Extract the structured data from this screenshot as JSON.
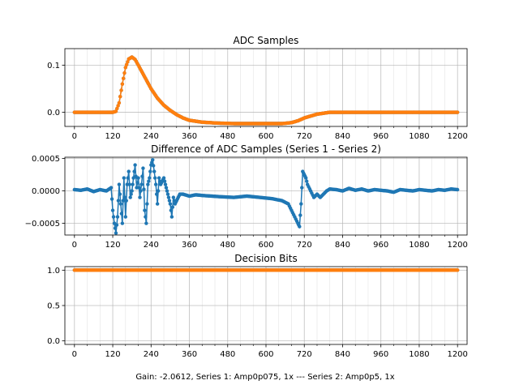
{
  "figure": {
    "caption": "Gain: -2.0612, Series 1: Amp0p075, 1x --- Series 2: Amp0p5, 1x"
  },
  "colors": {
    "series1": "#1f77b4",
    "series2": "#ff7f0e",
    "grid": "#b0b0b0",
    "axes": "#000000"
  },
  "chart_data": [
    {
      "type": "line",
      "title": "ADC Samples",
      "xlim": [
        -30,
        1230
      ],
      "ylim": [
        -0.03,
        0.135
      ],
      "grid": true,
      "xticks": [
        0,
        120,
        240,
        360,
        480,
        600,
        720,
        840,
        960,
        1080,
        1200
      ],
      "xtick_labels": [
        "0",
        "120",
        "240",
        "360",
        "480",
        "600",
        "720",
        "840",
        "960",
        "1080",
        "1200"
      ],
      "yticks": [
        0.0,
        0.1
      ],
      "ytick_labels": [
        "0.0",
        "0.1"
      ],
      "series": [
        {
          "color": "#1f77b4",
          "x": [
            0,
            100,
            120,
            130,
            140,
            150,
            160,
            170,
            180,
            190,
            200,
            220,
            240,
            260,
            280,
            300,
            320,
            340,
            360,
            400,
            450,
            500,
            550,
            600,
            650,
            680,
            700,
            720,
            740,
            760,
            780,
            800,
            850,
            900,
            1000,
            1100,
            1200
          ],
          "y": [
            0.0,
            0.0,
            0.0,
            0.002,
            0.02,
            0.06,
            0.095,
            0.113,
            0.117,
            0.112,
            0.1,
            0.075,
            0.05,
            0.03,
            0.015,
            0.004,
            -0.005,
            -0.012,
            -0.017,
            -0.021,
            -0.023,
            -0.024,
            -0.024,
            -0.024,
            -0.024,
            -0.022,
            -0.018,
            -0.012,
            -0.008,
            -0.004,
            -0.002,
            0.0,
            0.0,
            0.0,
            0.0,
            0.0,
            0.0
          ]
        },
        {
          "color": "#ff7f0e",
          "x": [
            0,
            100,
            120,
            130,
            140,
            150,
            160,
            170,
            180,
            190,
            200,
            220,
            240,
            260,
            280,
            300,
            320,
            340,
            360,
            400,
            450,
            500,
            550,
            600,
            650,
            680,
            700,
            720,
            740,
            760,
            780,
            800,
            850,
            900,
            1000,
            1100,
            1200
          ],
          "y": [
            0.0,
            0.0,
            0.0,
            0.002,
            0.02,
            0.06,
            0.095,
            0.113,
            0.117,
            0.112,
            0.1,
            0.075,
            0.05,
            0.03,
            0.015,
            0.004,
            -0.005,
            -0.012,
            -0.017,
            -0.021,
            -0.023,
            -0.024,
            -0.024,
            -0.024,
            -0.024,
            -0.022,
            -0.018,
            -0.012,
            -0.008,
            -0.004,
            -0.002,
            0.0,
            0.0,
            0.0,
            0.0,
            0.0,
            0.0
          ]
        }
      ]
    },
    {
      "type": "line",
      "title": "Difference of ADC Samples (Series 1 - Series 2)",
      "xlim": [
        -30,
        1230
      ],
      "ylim": [
        -0.00068,
        0.00052
      ],
      "grid": true,
      "xticks": [
        0,
        120,
        240,
        360,
        480,
        600,
        720,
        840,
        960,
        1080,
        1200
      ],
      "xtick_labels": [
        "0",
        "120",
        "240",
        "360",
        "480",
        "600",
        "720",
        "840",
        "960",
        "1080",
        "1200"
      ],
      "yticks": [
        -0.0005,
        0.0,
        0.0005
      ],
      "ytick_labels": [
        "−0.0005",
        "0.0000",
        "0.0005"
      ],
      "series": [
        {
          "color": "#1f77b4",
          "x": [
            0,
            20,
            40,
            60,
            80,
            100,
            115,
            120,
            125,
            130,
            135,
            140,
            145,
            150,
            155,
            160,
            165,
            170,
            175,
            180,
            185,
            190,
            195,
            200,
            205,
            210,
            215,
            220,
            225,
            230,
            235,
            240,
            245,
            250,
            255,
            260,
            265,
            270,
            275,
            280,
            285,
            290,
            295,
            300,
            305,
            310,
            315,
            320,
            325,
            330,
            340,
            360,
            380,
            400,
            430,
            460,
            500,
            540,
            580,
            620,
            650,
            670,
            680,
            690,
            700,
            705,
            710,
            715,
            720,
            725,
            730,
            740,
            750,
            760,
            770,
            780,
            790,
            800,
            820,
            840,
            860,
            880,
            900,
            920,
            940,
            960,
            980,
            1000,
            1020,
            1040,
            1060,
            1080,
            1100,
            1120,
            1140,
            1160,
            1180,
            1200
          ],
          "y": [
            2e-05,
            1e-05,
            3e-05,
            -1e-05,
            2e-05,
            0.0,
            5e-05,
            -0.0003,
            -0.0005,
            -0.00065,
            -0.0004,
            0.0001,
            -0.0002,
            -0.0005,
            0.0002,
            -0.0004,
            0.0001,
            0.0003,
            -0.0001,
            0.0,
            0.0002,
            0.0004,
            5e-05,
            0.0002,
            -0.0001,
            0.0001,
            0.00035,
            -0.0003,
            -0.0005,
            0.0001,
            0.0002,
            0.0004,
            0.00048,
            0.0003,
            0.0001,
            -0.0002,
            0.0002,
            0.0001,
            0.00015,
            0.0002,
            0.0001,
            0.0,
            -0.0001,
            -0.0002,
            -0.0004,
            -0.0001,
            -0.0002,
            -0.00015,
            -0.0001,
            -5e-05,
            -5e-05,
            -8e-05,
            -6e-05,
            -7e-05,
            -8e-05,
            -9e-05,
            -0.0001,
            -8e-05,
            -0.0001,
            -0.00012,
            -0.00015,
            -0.0002,
            -0.0003,
            -0.0004,
            -0.0005,
            -0.00055,
            -0.0002,
            0.0003,
            0.00025,
            0.0002,
            0.0001,
            0.0,
            -0.0001,
            -5e-05,
            -0.0001,
            -5e-05,
            0.0,
            3e-05,
            2e-05,
            0.0,
            4e-05,
            1e-05,
            3e-05,
            0.0,
            2e-05,
            1e-05,
            0.0,
            -2e-05,
            2e-05,
            1e-05,
            0.0,
            2e-05,
            1e-05,
            0.0,
            2e-05,
            1e-05,
            3e-05,
            2e-05
          ]
        }
      ]
    },
    {
      "type": "line",
      "title": "Decision Bits",
      "xlim": [
        -30,
        1230
      ],
      "ylim": [
        -0.05,
        1.05
      ],
      "grid": true,
      "xticks": [
        0,
        120,
        240,
        360,
        480,
        600,
        720,
        840,
        960,
        1080,
        1200
      ],
      "xtick_labels": [
        "0",
        "120",
        "240",
        "360",
        "480",
        "600",
        "720",
        "840",
        "960",
        "1080",
        "1200"
      ],
      "yticks": [
        0.0,
        0.5,
        1.0
      ],
      "ytick_labels": [
        "0.0",
        "0.5",
        "1.0"
      ],
      "series": [
        {
          "color": "#1f77b4",
          "x": [
            0,
            1200
          ],
          "y": [
            1.0,
            1.0
          ]
        },
        {
          "color": "#ff7f0e",
          "x": [
            0,
            1200
          ],
          "y": [
            1.0,
            1.0
          ]
        }
      ]
    }
  ]
}
